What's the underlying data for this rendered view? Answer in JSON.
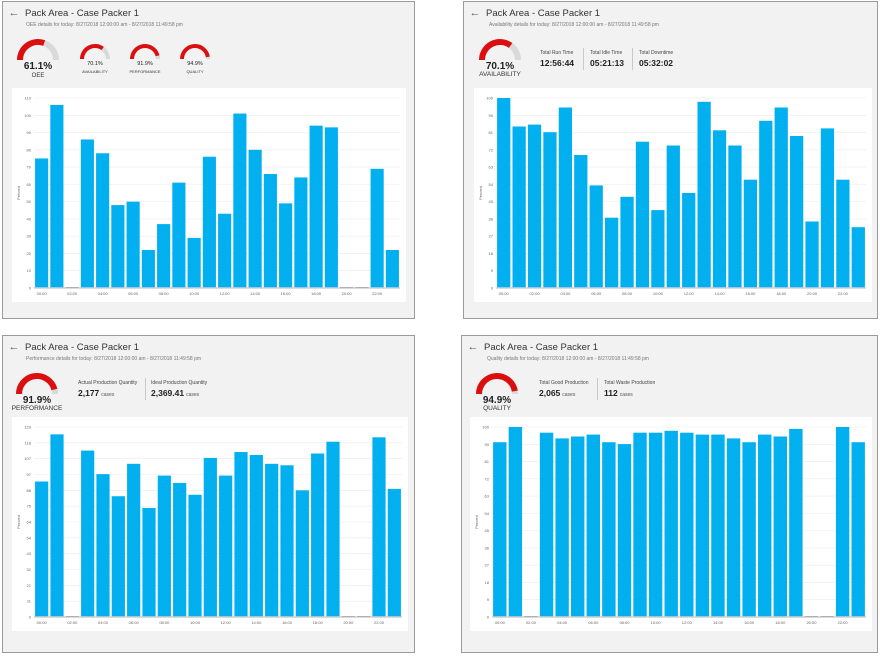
{
  "colors": {
    "bar": "#02B0F0",
    "gauge_fill": "#DB0F0F",
    "gauge_track": "#D9D9D9"
  },
  "icons": {
    "back": "arrow-left-icon"
  },
  "panels": {
    "oee": {
      "back_glyph": "←",
      "title": "Pack Area - Case Packer 1",
      "subtitle": "OEE details for today: 8/27/2018 12:00:00 am - 8/27/2018 11:49:58 pm",
      "gauges": [
        {
          "value": "61.1%",
          "label": "OEE",
          "fraction": 0.611
        },
        {
          "value": "70.1%",
          "label": "AVAILABILITY",
          "fraction": 0.701
        },
        {
          "value": "91.9%",
          "label": "PERFORMANCE",
          "fraction": 0.919
        },
        {
          "value": "94.9%",
          "label": "QUALITY",
          "fraction": 0.949
        }
      ]
    },
    "availability": {
      "back_glyph": "←",
      "title": "Pack Area - Case Packer 1",
      "subtitle": "Availability details for today: 8/27/2018 12:00:00 am - 8/27/2018 11:49:58 pm",
      "gauge": {
        "value": "70.1%",
        "label": "AVAILABILITY",
        "fraction": 0.701
      },
      "stats": [
        {
          "label": "Total Run Time",
          "value": "12:56:44"
        },
        {
          "label": "Total Idle Time",
          "value": "05:21:13"
        },
        {
          "label": "Total Downtime",
          "value": "05:32:02"
        }
      ]
    },
    "performance": {
      "back_glyph": "←",
      "title": "Pack Area - Case Packer 1",
      "subtitle": "Performance details for today: 8/27/2018 12:00:00 am - 8/27/2018 11:49:58 pm",
      "gauge": {
        "value": "91.9%",
        "label": "PERFORMANCE",
        "fraction": 0.919
      },
      "stats": [
        {
          "label": "Actual Production Quantity",
          "value": "2,177",
          "unit": "cases"
        },
        {
          "label": "Ideal Production Quantity",
          "value": "2,369.41",
          "unit": "cases"
        }
      ]
    },
    "quality": {
      "back_glyph": "←",
      "title": "Pack Area - Case Packer 1",
      "subtitle": "Quality details for today: 8/27/2018 12:00:00 am - 8/27/2018 11:49:58 pm",
      "gauge": {
        "value": "94.9%",
        "label": "QUALITY",
        "fraction": 0.949
      },
      "stats": [
        {
          "label": "Total Good Production",
          "value": "2,065",
          "unit": "cases"
        },
        {
          "label": "Total Waste Production",
          "value": "112",
          "unit": "cases"
        }
      ]
    }
  },
  "chart_data": [
    {
      "type": "bar",
      "panel": "oee",
      "ylabel": "Percent",
      "ylim": [
        0,
        110
      ],
      "yticks": [
        "0",
        "10",
        "20",
        "30",
        "40",
        "50",
        "60",
        "70",
        "80",
        "90",
        "100",
        "110"
      ],
      "xticks": [
        "00:00",
        "02:00",
        "04:00",
        "06:00",
        "08:00",
        "10:00",
        "12:00",
        "14:00",
        "16:00",
        "18:00",
        "20:00",
        "22:00"
      ],
      "values": [
        75,
        106,
        0,
        86,
        78,
        48,
        50,
        22,
        37,
        61,
        29,
        76,
        43,
        101,
        80,
        66,
        49,
        64,
        94,
        93,
        0,
        0,
        69,
        22
      ]
    },
    {
      "type": "bar",
      "panel": "availability",
      "ylabel": "Percent",
      "ylim": [
        0,
        100
      ],
      "yticks": [
        "0",
        "9",
        "18",
        "27",
        "36",
        "45",
        "54",
        "63",
        "72",
        "81",
        "90",
        "100"
      ],
      "xticks": [
        "00:00",
        "02:00",
        "04:00",
        "06:00",
        "08:00",
        "10:00",
        "12:00",
        "14:00",
        "16:00",
        "18:00",
        "20:00",
        "22:00"
      ],
      "values": [
        100,
        85,
        86,
        82,
        95,
        70,
        54,
        37,
        48,
        77,
        41,
        75,
        50,
        98,
        83,
        75,
        57,
        88,
        95,
        80,
        35,
        84,
        57,
        32
      ]
    },
    {
      "type": "bar",
      "panel": "performance",
      "ylabel": "Percent",
      "ylim": [
        0,
        129
      ],
      "yticks": [
        "0",
        "11",
        "21",
        "32",
        "43",
        "54",
        "64",
        "75",
        "86",
        "97",
        "107",
        "118",
        "129"
      ],
      "xticks": [
        "00:00",
        "02:00",
        "04:00",
        "06:00",
        "08:00",
        "10:00",
        "12:00",
        "14:00",
        "16:00",
        "18:00",
        "20:00",
        "22:00"
      ],
      "values": [
        92,
        124,
        0,
        113,
        97,
        82,
        104,
        74,
        96,
        91,
        83,
        108,
        96,
        112,
        110,
        104,
        103,
        86,
        111,
        119,
        0,
        0,
        122,
        87
      ]
    },
    {
      "type": "bar",
      "panel": "quality",
      "ylabel": "Percent",
      "ylim": [
        0,
        100
      ],
      "yticks": [
        "0",
        "9",
        "18",
        "27",
        "36",
        "45",
        "54",
        "63",
        "72",
        "81",
        "90",
        "100"
      ],
      "xticks": [
        "00:00",
        "02:00",
        "04:00",
        "06:00",
        "08:00",
        "10:00",
        "12:00",
        "14:00",
        "16:00",
        "18:00",
        "20:00",
        "22:00"
      ],
      "values": [
        92,
        100,
        0,
        97,
        94,
        95,
        96,
        92,
        91,
        97,
        97,
        98,
        97,
        96,
        96,
        94,
        92,
        96,
        95,
        99,
        0,
        0,
        100,
        92
      ]
    }
  ]
}
